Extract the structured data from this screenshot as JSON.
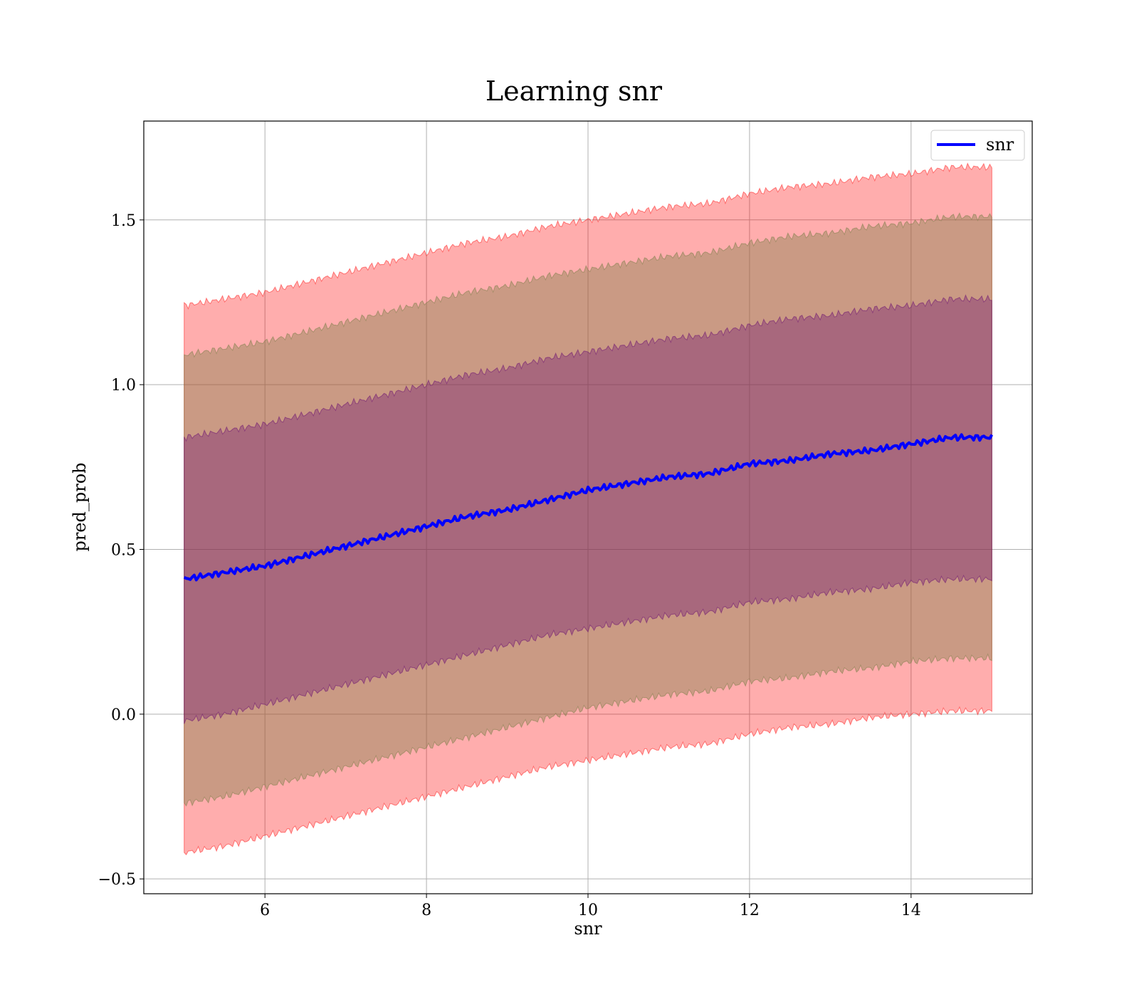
{
  "chart_data": {
    "type": "line",
    "title": "Learning snr",
    "xlabel": "snr",
    "ylabel": "pred_prob",
    "xlim": [
      4.5,
      15.5
    ],
    "ylim": [
      -0.545,
      1.8
    ],
    "grid": true,
    "legend_position": "top-right",
    "x_ticks": [
      6,
      8,
      10,
      12,
      14
    ],
    "x_tick_labels": [
      "6",
      "8",
      "10",
      "12",
      "14"
    ],
    "y_ticks": [
      -0.5,
      0.0,
      0.5,
      1.0,
      1.5
    ],
    "y_tick_labels": [
      "−0.5",
      "0.0",
      "0.5",
      "1.0",
      "1.5"
    ],
    "x": [
      5,
      5.5,
      6,
      6.5,
      7,
      7.5,
      8,
      8.5,
      9,
      9.5,
      10,
      10.5,
      11,
      11.5,
      12,
      12.5,
      13,
      13.5,
      14,
      14.5,
      15
    ],
    "series": [
      {
        "name": "snr",
        "color": "#0000ff",
        "values": [
          0.41,
          0.43,
          0.45,
          0.48,
          0.51,
          0.54,
          0.57,
          0.6,
          0.62,
          0.65,
          0.68,
          0.7,
          0.72,
          0.73,
          0.76,
          0.77,
          0.79,
          0.8,
          0.82,
          0.84,
          0.84
        ]
      }
    ],
    "bands": [
      {
        "color": "#ff0000",
        "opacity": 0.32,
        "lower": [
          -0.42,
          -0.4,
          -0.37,
          -0.34,
          -0.31,
          -0.28,
          -0.25,
          -0.22,
          -0.19,
          -0.16,
          -0.14,
          -0.12,
          -0.1,
          -0.09,
          -0.06,
          -0.04,
          -0.03,
          -0.01,
          0.0,
          0.01,
          0.01
        ],
        "upper": [
          1.24,
          1.26,
          1.28,
          1.31,
          1.34,
          1.37,
          1.4,
          1.43,
          1.45,
          1.48,
          1.5,
          1.52,
          1.54,
          1.55,
          1.58,
          1.6,
          1.61,
          1.63,
          1.64,
          1.66,
          1.66
        ]
      },
      {
        "color": "#80804d",
        "opacity": 0.42,
        "lower": [
          -0.27,
          -0.25,
          -0.22,
          -0.19,
          -0.16,
          -0.13,
          -0.1,
          -0.07,
          -0.04,
          -0.01,
          0.02,
          0.04,
          0.06,
          0.07,
          0.1,
          0.11,
          0.13,
          0.14,
          0.16,
          0.17,
          0.17
        ],
        "upper": [
          1.09,
          1.11,
          1.13,
          1.16,
          1.19,
          1.22,
          1.25,
          1.28,
          1.3,
          1.33,
          1.35,
          1.37,
          1.39,
          1.4,
          1.43,
          1.45,
          1.46,
          1.48,
          1.49,
          1.51,
          1.51
        ]
      },
      {
        "color": "#600070",
        "opacity": 0.32,
        "lower": [
          -0.02,
          0.0,
          0.03,
          0.06,
          0.09,
          0.12,
          0.15,
          0.18,
          0.21,
          0.24,
          0.26,
          0.28,
          0.3,
          0.31,
          0.34,
          0.35,
          0.37,
          0.38,
          0.4,
          0.41,
          0.41
        ],
        "upper": [
          0.84,
          0.86,
          0.88,
          0.91,
          0.94,
          0.97,
          1.0,
          1.03,
          1.05,
          1.08,
          1.1,
          1.12,
          1.14,
          1.15,
          1.18,
          1.2,
          1.21,
          1.23,
          1.24,
          1.26,
          1.26
        ]
      }
    ]
  }
}
